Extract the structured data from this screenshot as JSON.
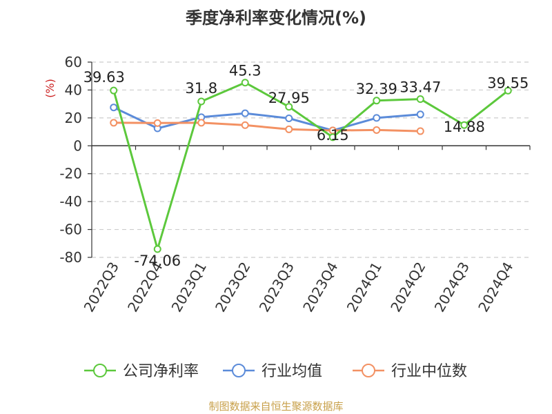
{
  "title": "季度净利率变化情况(%)",
  "source": "制图数据来自恒生聚源数据库",
  "chart_data": {
    "type": "line",
    "title": "季度净利率变化情况(%)",
    "ylabel": "(%)",
    "ylim": [
      -80,
      60
    ],
    "yticks": [
      60,
      40,
      20,
      0,
      -20,
      -40,
      -60,
      -80
    ],
    "categories": [
      "2022Q3",
      "2022Q4",
      "2023Q1",
      "2023Q2",
      "2023Q3",
      "2023Q4",
      "2024Q1",
      "2024Q2",
      "2024Q3",
      "2024Q4"
    ],
    "grid": true,
    "legend_position": "bottom",
    "series": [
      {
        "name": "公司净利率",
        "color": "#5cc83c",
        "values": [
          39.63,
          -74.06,
          31.8,
          45.3,
          27.95,
          6.15,
          32.39,
          33.47,
          14.88,
          39.55
        ],
        "labels": [
          "39.63",
          "-74.06",
          "31.8",
          "45.3",
          "27.95",
          "6.15",
          "32.39",
          "33.47",
          "14.88",
          "39.55"
        ]
      },
      {
        "name": "行业均值",
        "color": "#5b8bd9",
        "values": [
          27.5,
          12.5,
          20.5,
          23.3,
          19.7,
          11.0,
          20.0,
          22.5,
          null,
          null
        ]
      },
      {
        "name": "行业中位数",
        "color": "#f39163",
        "values": [
          16.5,
          16.3,
          16.5,
          14.8,
          11.8,
          11.0,
          11.3,
          10.5,
          null,
          null
        ]
      }
    ]
  }
}
